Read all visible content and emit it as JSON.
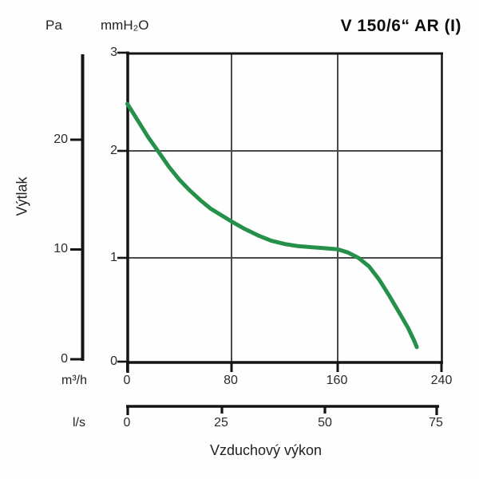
{
  "header": {
    "pa_unit": "Pa",
    "mmh2o_unit": "mmH₂O",
    "title": "V 150/6“ AR (I)"
  },
  "y_axis": {
    "label": "Výtlak",
    "pa_ticks": [
      "0",
      "10",
      "20"
    ],
    "mmh2o_ticks": [
      "0",
      "1",
      "2",
      "3"
    ]
  },
  "x_axis": {
    "label": "Vzduchový výkon",
    "m3h_unit": "m³/h",
    "m3h_ticks": [
      "0",
      "80",
      "160",
      "240"
    ],
    "ls_unit": "l/s",
    "ls_ticks": [
      "0",
      "25",
      "50",
      "75"
    ]
  },
  "chart_data": {
    "type": "line",
    "title": "V 150/6“ AR (I)",
    "xlabel": "Vzduchový výkon",
    "ylabel": "Výtlak",
    "x_units": [
      "m³/h",
      "l/s"
    ],
    "y_units": [
      "Pa",
      "mmH₂O"
    ],
    "x_range_m3h": [
      0,
      240
    ],
    "x_ticks_m3h": [
      0,
      80,
      160,
      240
    ],
    "x_ticks_ls": [
      0,
      25,
      50,
      75
    ],
    "y_range_mmh2o": [
      0,
      3
    ],
    "y_ticks_mmh2o": [
      0,
      1,
      2,
      3
    ],
    "y_ticks_pa": [
      0,
      10,
      20
    ],
    "grid": true,
    "grid_x_m3h": [
      80,
      160
    ],
    "grid_y_mmh2o": [
      1,
      2
    ],
    "legend_position": "none",
    "series": [
      {
        "name": "V 150/6“ AR (I)",
        "color": "#259049",
        "points_m3h_mmh2o": [
          [
            0,
            2.48
          ],
          [
            8,
            2.31
          ],
          [
            16,
            2.14
          ],
          [
            24,
            1.99
          ],
          [
            32,
            1.85
          ],
          [
            40,
            1.73
          ],
          [
            48,
            1.63
          ],
          [
            56,
            1.54
          ],
          [
            64,
            1.46
          ],
          [
            72,
            1.4
          ],
          [
            80,
            1.34
          ],
          [
            90,
            1.27
          ],
          [
            100,
            1.21
          ],
          [
            110,
            1.16
          ],
          [
            120,
            1.13
          ],
          [
            130,
            1.11
          ],
          [
            140,
            1.1
          ],
          [
            150,
            1.09
          ],
          [
            160,
            1.08
          ],
          [
            168,
            1.05
          ],
          [
            176,
            1.0
          ],
          [
            184,
            0.92
          ],
          [
            192,
            0.79
          ],
          [
            200,
            0.63
          ],
          [
            208,
            0.46
          ],
          [
            214,
            0.33
          ],
          [
            219,
            0.2
          ],
          [
            221,
            0.14
          ]
        ]
      }
    ],
    "colors": {
      "curve": "#259049",
      "border": "#141414",
      "grid": "#4a4a4a",
      "text": "#222222"
    }
  }
}
